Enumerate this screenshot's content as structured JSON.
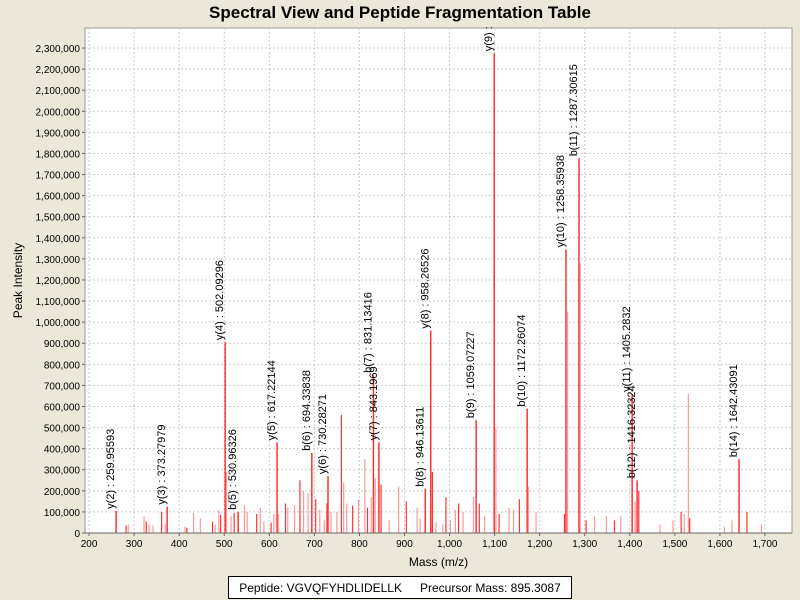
{
  "chart_data": {
    "type": "bar",
    "title": "Spectral View and Peptide Fragmentation Table",
    "xlabel": "Mass (m/z)",
    "ylabel": "Peak Intensity",
    "xlim": [
      191,
      1760
    ],
    "ylim": [
      0,
      2395000
    ],
    "x_ticks": [
      200,
      300,
      400,
      500,
      600,
      700,
      800,
      900,
      1000,
      1100,
      1200,
      1300,
      1400,
      1500,
      1600,
      1700
    ],
    "x_tick_labels": [
      "200",
      "300",
      "400",
      "500",
      "600",
      "700",
      "800",
      "900",
      "1,000",
      "1,100",
      "1,200",
      "1,300",
      "1,400",
      "1,500",
      "1,600",
      "1,700"
    ],
    "y_ticks": [
      0,
      100000,
      200000,
      300000,
      400000,
      500000,
      600000,
      700000,
      800000,
      900000,
      1000000,
      1100000,
      1200000,
      1300000,
      1400000,
      1500000,
      1600000,
      1700000,
      1800000,
      1900000,
      2000000,
      2100000,
      2200000,
      2300000
    ],
    "y_tick_labels": [
      "0",
      "100,000",
      "200,000",
      "300,000",
      "400,000",
      "500,000",
      "600,000",
      "700,000",
      "800,000",
      "900,000",
      "1,000,000",
      "1,100,000",
      "1,200,000",
      "1,300,000",
      "1,400,000",
      "1,500,000",
      "1,600,000",
      "1,700,000",
      "1,800,000",
      "1,900,000",
      "2,000,000",
      "2,100,000",
      "2,200,000",
      "2,300,000"
    ],
    "grid": true,
    "annotated_peaks": [
      {
        "mz": 259.96,
        "intensity": 105000,
        "label": "y(2) : 259.95593"
      },
      {
        "mz": 373.28,
        "intensity": 125000,
        "label": "y(3) : 373.27979"
      },
      {
        "mz": 502.09,
        "intensity": 905000,
        "label": "y(4) : 502.09296"
      },
      {
        "mz": 530.96,
        "intensity": 100000,
        "label": "b(5) : 530.96326"
      },
      {
        "mz": 617.22,
        "intensity": 430000,
        "label": "y(5) : 617.22144"
      },
      {
        "mz": 694.34,
        "intensity": 380000,
        "label": "b(6) : 694.33838"
      },
      {
        "mz": 730.28,
        "intensity": 270000,
        "label": "y(6) : 730.28271"
      },
      {
        "mz": 831.13,
        "intensity": 750000,
        "label": "b(7) : 831.13416"
      },
      {
        "mz": 843.19,
        "intensity": 430000,
        "label": "y(7) : 843.1969"
      },
      {
        "mz": 946.14,
        "intensity": 210000,
        "label": "b(8) : 946.13611"
      },
      {
        "mz": 958.27,
        "intensity": 960000,
        "label": "y(8) : 958.26526"
      },
      {
        "mz": 1059.07,
        "intensity": 535000,
        "label": "b(9) : 1059.07227"
      },
      {
        "mz": 1099.2,
        "intensity": 2275000,
        "label": "y(9) :"
      },
      {
        "mz": 1172.26,
        "intensity": 590000,
        "label": "b(10) : 1172.26074"
      },
      {
        "mz": 1258.36,
        "intensity": 1345000,
        "label": "y(10) : 1258.35938"
      },
      {
        "mz": 1287.31,
        "intensity": 1777000,
        "label": "b(11) : 1287.30615"
      },
      {
        "mz": 1405.28,
        "intensity": 660000,
        "label": "y(11) : 1405.2832"
      },
      {
        "mz": 1416.32,
        "intensity": 250000,
        "label": "b(12) : 1416.32324"
      },
      {
        "mz": 1642.43,
        "intensity": 350000,
        "label": "b(14) : 1642.43091"
      }
    ],
    "other_peaks": [
      [
        282,
        35000
      ],
      [
        287,
        40000
      ],
      [
        322,
        80000
      ],
      [
        327,
        55000
      ],
      [
        333,
        40000
      ],
      [
        342,
        35000
      ],
      [
        361,
        100000
      ],
      [
        369,
        45000
      ],
      [
        413,
        30000
      ],
      [
        417,
        25000
      ],
      [
        432,
        95000
      ],
      [
        447,
        70000
      ],
      [
        474,
        55000
      ],
      [
        480,
        40000
      ],
      [
        488,
        110000
      ],
      [
        492,
        85000
      ],
      [
        505,
        290000
      ],
      [
        515,
        80000
      ],
      [
        522,
        95000
      ],
      [
        545,
        130000
      ],
      [
        551,
        100000
      ],
      [
        572,
        90000
      ],
      [
        580,
        120000
      ],
      [
        588,
        55000
      ],
      [
        604,
        50000
      ],
      [
        610,
        90000
      ],
      [
        620,
        90000
      ],
      [
        636,
        140000
      ],
      [
        641,
        120000
      ],
      [
        656,
        130000
      ],
      [
        668,
        250000
      ],
      [
        676,
        200000
      ],
      [
        686,
        190000
      ],
      [
        703,
        160000
      ],
      [
        712,
        110000
      ],
      [
        722,
        60000
      ],
      [
        728,
        140000
      ],
      [
        737,
        100000
      ],
      [
        750,
        100000
      ],
      [
        760,
        560000
      ],
      [
        765,
        240000
      ],
      [
        772,
        140000
      ],
      [
        785,
        130000
      ],
      [
        798,
        160000
      ],
      [
        812,
        350000
      ],
      [
        818,
        120000
      ],
      [
        826,
        170000
      ],
      [
        835,
        260000
      ],
      [
        848,
        230000
      ],
      [
        866,
        60000
      ],
      [
        887,
        220000
      ],
      [
        904,
        150000
      ],
      [
        928,
        120000
      ],
      [
        935,
        70000
      ],
      [
        962,
        290000
      ],
      [
        970,
        50000
      ],
      [
        985,
        40000
      ],
      [
        992,
        170000
      ],
      [
        1002,
        60000
      ],
      [
        1013,
        110000
      ],
      [
        1020,
        140000
      ],
      [
        1030,
        100000
      ],
      [
        1053,
        170000
      ],
      [
        1066,
        140000
      ],
      [
        1078,
        80000
      ],
      [
        1103,
        500000
      ],
      [
        1110,
        90000
      ],
      [
        1132,
        120000
      ],
      [
        1142,
        110000
      ],
      [
        1155,
        160000
      ],
      [
        1175,
        220000
      ],
      [
        1192,
        100000
      ],
      [
        1255,
        90000
      ],
      [
        1262,
        1050000
      ],
      [
        1290,
        1280000
      ],
      [
        1303,
        60000
      ],
      [
        1322,
        80000
      ],
      [
        1348,
        80000
      ],
      [
        1366,
        60000
      ],
      [
        1380,
        80000
      ],
      [
        1412,
        150000
      ],
      [
        1420,
        200000
      ],
      [
        1467,
        40000
      ],
      [
        1496,
        60000
      ],
      [
        1514,
        100000
      ],
      [
        1521,
        90000
      ],
      [
        1530,
        660000
      ],
      [
        1533,
        70000
      ],
      [
        1610,
        30000
      ],
      [
        1627,
        60000
      ],
      [
        1660,
        100000
      ],
      [
        1692,
        40000
      ]
    ],
    "colors": {
      "peak": "#ff3333",
      "peak_light": "#ff9999",
      "plot_bg": "#ffffff",
      "page_bg": "#ebe7d9",
      "grid": "#cccccc"
    }
  },
  "legend": {
    "peptide": "Peptide: VGVQFYHDLIDELLK",
    "precursor": "Precursor Mass: 895.3087"
  }
}
